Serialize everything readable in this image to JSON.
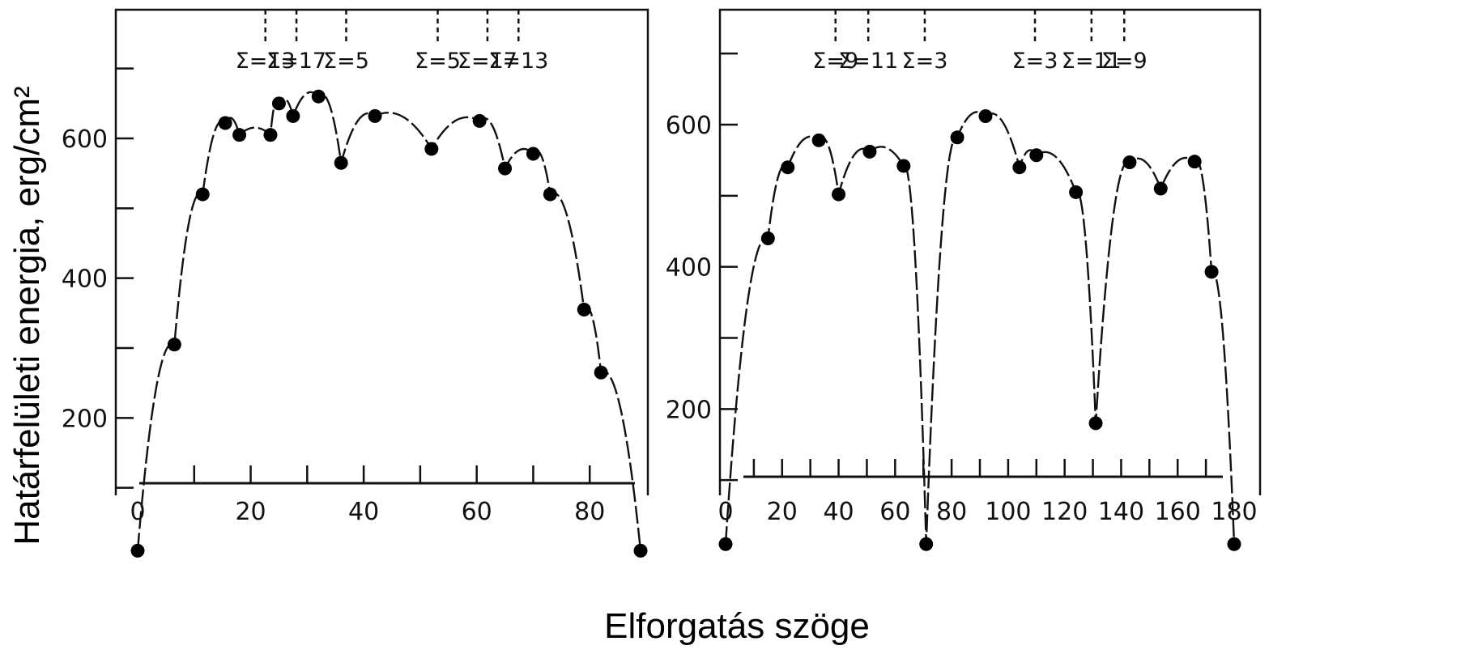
{
  "figure": {
    "ylabel": "Határfelületi energia, erg/cm²",
    "xlabel": "Elforgatás szöge"
  },
  "chart_data": [
    {
      "type": "scatter",
      "xlim": [
        0,
        90
      ],
      "ylim": [
        0,
        800
      ],
      "x_ticks": [
        0,
        20,
        40,
        60,
        80
      ],
      "y_ticks": [
        200,
        400,
        600
      ],
      "points": [
        {
          "x": 0,
          "y": 10
        },
        {
          "x": 6.5,
          "y": 305
        },
        {
          "x": 11.5,
          "y": 520
        },
        {
          "x": 15.5,
          "y": 622
        },
        {
          "x": 18,
          "y": 605
        },
        {
          "x": 23.5,
          "y": 605
        },
        {
          "x": 25,
          "y": 650
        },
        {
          "x": 27.5,
          "y": 632
        },
        {
          "x": 32,
          "y": 660
        },
        {
          "x": 36,
          "y": 565
        },
        {
          "x": 42,
          "y": 632
        },
        {
          "x": 52,
          "y": 585
        },
        {
          "x": 60.5,
          "y": 625
        },
        {
          "x": 65,
          "y": 557
        },
        {
          "x": 70,
          "y": 578
        },
        {
          "x": 73,
          "y": 520
        },
        {
          "x": 79,
          "y": 355
        },
        {
          "x": 82,
          "y": 265
        },
        {
          "x": 89,
          "y": 10
        }
      ],
      "sigma_markers": [
        {
          "x": 22.6,
          "label": "Σ=13"
        },
        {
          "x": 28.1,
          "label": "Σ=17"
        },
        {
          "x": 36.9,
          "label": "Σ=5"
        },
        {
          "x": 53.1,
          "label": "Σ=5"
        },
        {
          "x": 61.9,
          "label": "Σ=17"
        },
        {
          "x": 67.4,
          "label": "Σ=13"
        }
      ]
    },
    {
      "type": "scatter",
      "xlim": [
        0,
        180
      ],
      "ylim": [
        0,
        800
      ],
      "x_ticks": [
        0,
        20,
        40,
        60,
        80,
        100,
        120,
        140,
        160,
        180
      ],
      "y_ticks": [
        200,
        400,
        600
      ],
      "points": [
        {
          "x": 0,
          "y": 10
        },
        {
          "x": 15,
          "y": 440
        },
        {
          "x": 22,
          "y": 540
        },
        {
          "x": 33,
          "y": 578
        },
        {
          "x": 40,
          "y": 502
        },
        {
          "x": 51,
          "y": 562
        },
        {
          "x": 63,
          "y": 542
        },
        {
          "x": 71,
          "y": 10
        },
        {
          "x": 82,
          "y": 582
        },
        {
          "x": 92,
          "y": 612
        },
        {
          "x": 104,
          "y": 540
        },
        {
          "x": 110,
          "y": 557
        },
        {
          "x": 124,
          "y": 505
        },
        {
          "x": 131,
          "y": 180
        },
        {
          "x": 143,
          "y": 547
        },
        {
          "x": 154,
          "y": 510
        },
        {
          "x": 166,
          "y": 548
        },
        {
          "x": 172,
          "y": 393
        },
        {
          "x": 180,
          "y": 10
        }
      ],
      "sigma_markers": [
        {
          "x": 38.9,
          "label": "Σ=9"
        },
        {
          "x": 50.5,
          "label": "Σ=11"
        },
        {
          "x": 70.5,
          "label": "Σ=3"
        },
        {
          "x": 109.5,
          "label": "Σ=3"
        },
        {
          "x": 129.5,
          "label": "Σ=11"
        },
        {
          "x": 141.1,
          "label": "Σ=9"
        }
      ]
    }
  ]
}
